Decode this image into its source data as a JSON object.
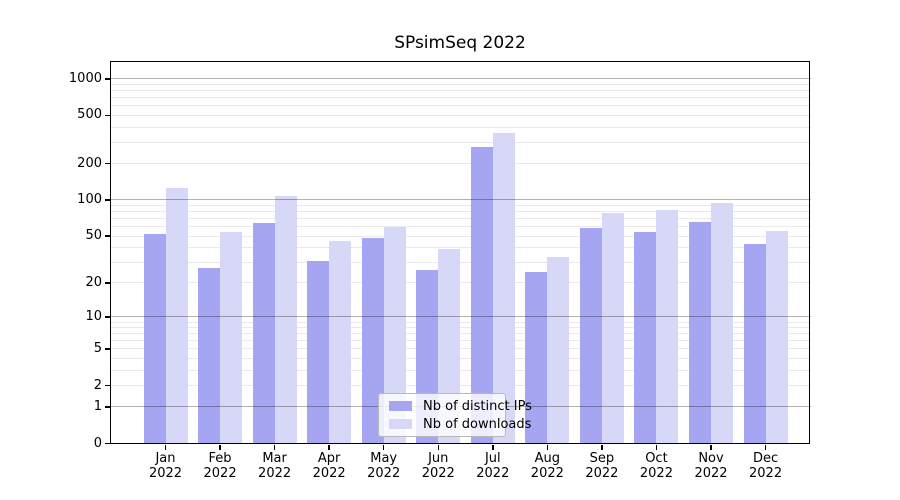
{
  "chart_data": {
    "type": "bar",
    "title": "SPsimSeq 2022",
    "categories": [
      {
        "month": "Jan",
        "year": "2022"
      },
      {
        "month": "Feb",
        "year": "2022"
      },
      {
        "month": "Mar",
        "year": "2022"
      },
      {
        "month": "Apr",
        "year": "2022"
      },
      {
        "month": "May",
        "year": "2022"
      },
      {
        "month": "Jun",
        "year": "2022"
      },
      {
        "month": "Jul",
        "year": "2022"
      },
      {
        "month": "Aug",
        "year": "2022"
      },
      {
        "month": "Sep",
        "year": "2022"
      },
      {
        "month": "Oct",
        "year": "2022"
      },
      {
        "month": "Nov",
        "year": "2022"
      },
      {
        "month": "Dec",
        "year": "2022"
      }
    ],
    "series": [
      {
        "name": "Nb of distinct IPs",
        "color": "#a5a5f2",
        "values": [
          52,
          27,
          64,
          31,
          48,
          26,
          274,
          25,
          58,
          54,
          65,
          43
        ]
      },
      {
        "name": "Nb of downloads",
        "color": "#d7d7f8",
        "values": [
          126,
          54,
          108,
          45,
          59,
          39,
          360,
          33,
          78,
          82,
          95,
          55
        ]
      }
    ],
    "y_axis": {
      "scale": "log10(value+1)",
      "ticks": [
        0,
        1,
        2,
        5,
        10,
        20,
        50,
        100,
        200,
        500,
        1000
      ],
      "top_value": 1400
    },
    "grid": {
      "major_ticks": [
        1,
        10,
        100,
        1000
      ],
      "minor_ticks": [
        2,
        3,
        4,
        5,
        6,
        7,
        8,
        9,
        20,
        30,
        40,
        50,
        60,
        70,
        80,
        90,
        200,
        300,
        400,
        500,
        600,
        700,
        800,
        900
      ],
      "minor_color": "#eaeaea",
      "major_color": "#b3b3b3"
    },
    "legend": {
      "position": "bottom-center"
    },
    "background": "#ffffff"
  }
}
